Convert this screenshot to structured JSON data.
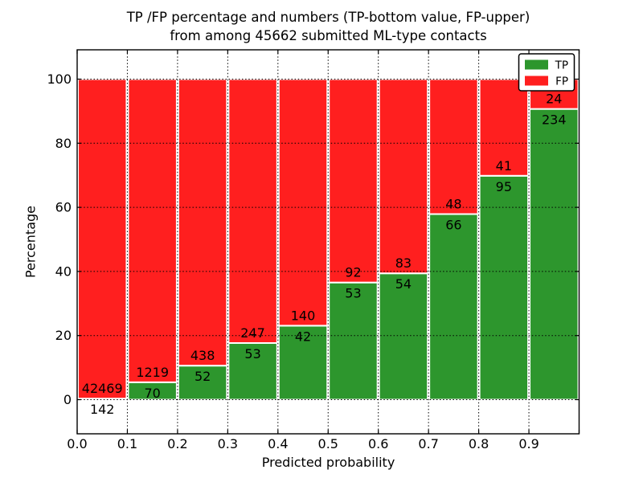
{
  "figure": {
    "title_line1": "TP /FP percentage and numbers (TP-bottom value, FP-upper)",
    "title_line2": "from among 45662 submitted ML-type contacts",
    "xlabel": "Predicted probability",
    "ylabel": "Percentage"
  },
  "colors": {
    "tp": "#2d962d",
    "fp": "#ff1f1f",
    "grid": "#000000",
    "bar_edge": "#ffffff",
    "spine": "#000000",
    "background": "#ffffff"
  },
  "legend": {
    "items": [
      {
        "label": "TP",
        "color": "#2d962d"
      },
      {
        "label": "FP",
        "color": "#ff1f1f"
      }
    ],
    "position": "upper right"
  },
  "chart_data": {
    "type": "bar",
    "subtype": "stacked-100-percent",
    "title": "TP /FP percentage and numbers (TP-bottom value, FP-upper) from among 45662 submitted ML-type contacts",
    "xlabel": "Predicted probability",
    "ylabel": "Percentage",
    "total_contacts": 45662,
    "categories": [
      "0.0-0.1",
      "0.1-0.2",
      "0.2-0.3",
      "0.3-0.4",
      "0.4-0.5",
      "0.5-0.6",
      "0.6-0.7",
      "0.7-0.8",
      "0.8-0.9",
      "0.9-1.0"
    ],
    "bin_width": 0.1,
    "series": [
      {
        "name": "TP",
        "color": "#2d962d",
        "values": [
          142,
          70,
          52,
          53,
          42,
          53,
          54,
          66,
          95,
          234
        ]
      },
      {
        "name": "FP",
        "color": "#ff1f1f",
        "values": [
          42469,
          1219,
          438,
          247,
          140,
          92,
          83,
          48,
          41,
          24
        ]
      }
    ],
    "x_tick_labels": [
      "0.0",
      "0.1",
      "0.2",
      "0.3",
      "0.4",
      "0.5",
      "0.6",
      "0.7",
      "0.8",
      "0.9"
    ],
    "y_tick_labels": [
      "0",
      "20",
      "40",
      "60",
      "80",
      "100"
    ],
    "xlim": [
      0.0,
      1.0
    ],
    "ylim": [
      -10.7,
      109.2
    ],
    "grid": "dotted",
    "legend_position": "upper right"
  }
}
